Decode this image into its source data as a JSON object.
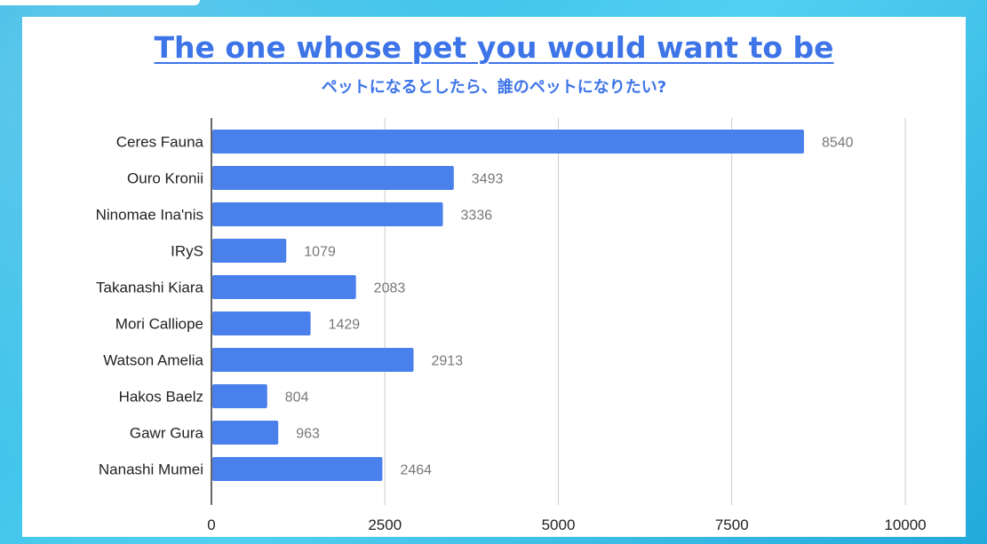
{
  "colors": {
    "background": "#3cc3ea",
    "panel": "#ffffff",
    "title": "#3d74e8",
    "bar": "#4a80ec",
    "grid": "#cccccc",
    "axis": "#333333"
  },
  "chart_data": {
    "type": "bar",
    "orientation": "horizontal",
    "title": "The one whose pet you would want to be",
    "subtitle": "ペットになるとしたら、誰のペットになりたい?",
    "categories": [
      "Ceres Fauna",
      "Ouro Kronii",
      "Ninomae Ina'nis",
      "IRyS",
      "Takanashi Kiara",
      "Mori Calliope",
      "Watson Amelia",
      "Hakos Baelz",
      "Gawr Gura",
      "Nanashi Mumei"
    ],
    "values": [
      8540,
      3493,
      3336,
      1079,
      2083,
      1429,
      2913,
      804,
      963,
      2464
    ],
    "value_labels": [
      "8540",
      "3493",
      "3336",
      "1079",
      "2083",
      "1429",
      "2913",
      "804",
      "963",
      "2464"
    ],
    "xlim": [
      0,
      10000
    ],
    "xticks": [
      0,
      2500,
      5000,
      7500,
      10000
    ],
    "xtick_labels": [
      "0",
      "2500",
      "5000",
      "7500",
      "10000"
    ],
    "grid": true,
    "legend": "none"
  }
}
